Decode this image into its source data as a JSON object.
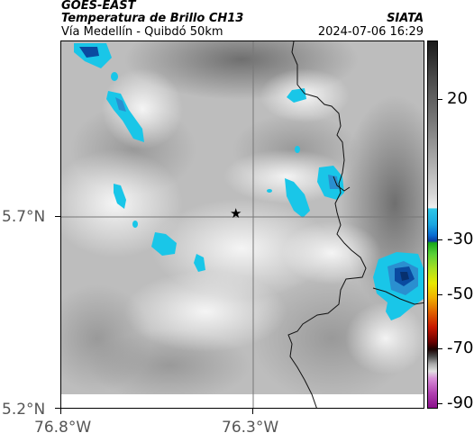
{
  "header": {
    "satellite": "GOES-EAST",
    "product": "Temperatura de Brillo CH13",
    "organization": "SIATA",
    "region": "Vía Medellín - Quibdó 50km",
    "datetime": "2024-07-06 16:29"
  },
  "map": {
    "lat_labels": [
      "5.7°N",
      "5.2°N"
    ],
    "lon_labels": [
      "76.8°W",
      "76.3°W"
    ],
    "marker_icon": "star-icon"
  },
  "colorbar": {
    "ticks": [
      "20",
      "-30",
      "-50",
      "-70",
      "-90"
    ],
    "colors": {
      "warm_gray": "#6a6a6a",
      "light_gray": "#e6e6e6",
      "cold_cyan": "#19c6e8",
      "cold_blue": "#0a4aa0",
      "green": "#2fbf2f",
      "yellow": "#e8e800",
      "red": "#d21a00",
      "magenta": "#b040b0"
    }
  }
}
